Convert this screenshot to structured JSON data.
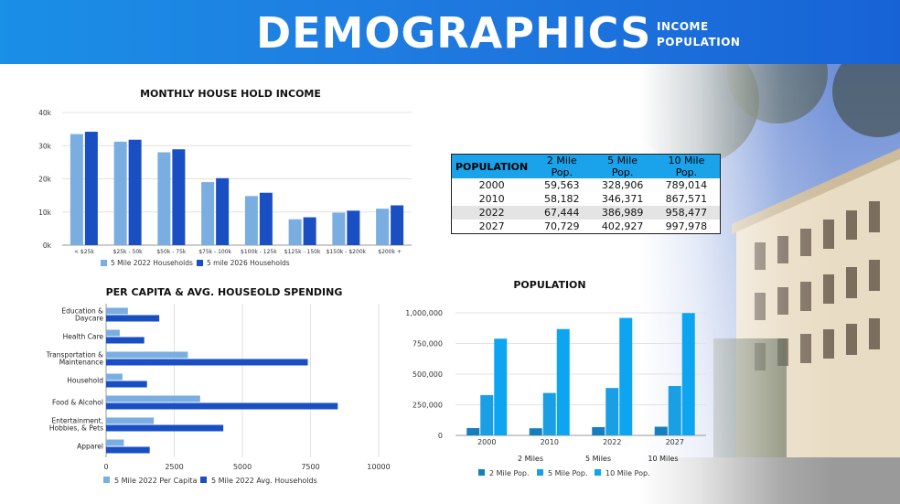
{
  "header": {
    "title": "DEMOGRAPHICS",
    "subtitle_1": "INCOME",
    "subtitle_2": "POPULATION"
  },
  "colors": {
    "header_bg": "#1f7be0",
    "light_blue": "#7aaee0",
    "dark_blue": "#1a4fc4",
    "pop_2mile": "#137fbf",
    "pop_5mile": "#1a9fe4",
    "pop_10mile": "#0ea5f0",
    "table_header": "#1aa3ea"
  },
  "chart_data": [
    {
      "id": "income",
      "type": "bar",
      "title": "MONTHLY HOUSE HOLD INCOME",
      "categories": [
        "< $25k",
        "$25k - 50k",
        "$50k - 75k",
        "$75k - 100k",
        "$100k - 125k",
        "$125k - 150k",
        "$150k - $200k",
        "$200k +"
      ],
      "series": [
        {
          "name": "5 Mile 2022 Households",
          "values": [
            33500,
            31200,
            28000,
            19000,
            14800,
            7800,
            9800,
            11000
          ]
        },
        {
          "name": "5 mile 2026 Households",
          "values": [
            34200,
            31800,
            28900,
            20200,
            15800,
            8400,
            10400,
            12000
          ]
        }
      ],
      "ylim": [
        0,
        40000
      ],
      "yticks": [
        "0k",
        "10k",
        "20k",
        "30k",
        "40k"
      ],
      "grid": true,
      "legend": "bottom"
    },
    {
      "id": "spending",
      "type": "bar",
      "orientation": "horizontal",
      "title": "PER CAPITA & AVG. HOUSEOLD SPENDING",
      "categories": [
        [
          "Education &",
          "Daycare"
        ],
        [
          "Health Care"
        ],
        [
          "Transportation &",
          "Maintenance"
        ],
        [
          "Household"
        ],
        [
          "Food & Alcohol"
        ],
        [
          "Entertainment,",
          "Hobbies, & Pets"
        ],
        [
          "Apparel"
        ]
      ],
      "series": [
        {
          "name": "5 Mile 2022 Per Capita",
          "values": [
            800,
            500,
            3000,
            600,
            3450,
            1750,
            650
          ]
        },
        {
          "name": "5 Mile 2022 Avg. Households",
          "values": [
            1950,
            1400,
            7400,
            1500,
            8500,
            4300,
            1600
          ]
        }
      ],
      "xlim": [
        0,
        10000
      ],
      "xticks": [
        "0",
        "2500",
        "5000",
        "7500",
        "10000"
      ],
      "grid": true,
      "legend": "bottom"
    },
    {
      "id": "population",
      "type": "bar",
      "title": "POPULATION",
      "categories": [
        "2000",
        "2010",
        "2022",
        "2027"
      ],
      "series": [
        {
          "name": "2 Mile Pop.",
          "values": [
            59563,
            58182,
            67444,
            70729
          ]
        },
        {
          "name": "5 Mile Pop.",
          "values": [
            328906,
            346371,
            386989,
            402927
          ]
        },
        {
          "name": "10 Mile Pop.",
          "values": [
            789014,
            867571,
            958477,
            997978
          ]
        }
      ],
      "ylim": [
        0,
        1000000
      ],
      "yticks": [
        "0",
        "250,000",
        "500,000",
        "750,000",
        "1,000,000"
      ],
      "group_labels": [
        "2 Miles",
        "5 Miles",
        "10 Miles"
      ],
      "grid": true,
      "legend": "bottom"
    }
  ],
  "population_table": {
    "headers": [
      "POPULATION",
      "2 Mile Pop.",
      "5 Mile Pop.",
      "10 Mile Pop."
    ],
    "rows": [
      [
        "2000",
        "59,563",
        "328,906",
        "789,014"
      ],
      [
        "2010",
        "58,182",
        "346,371",
        "867,571"
      ],
      [
        "2022",
        "67,444",
        "386,989",
        "958,477"
      ],
      [
        "2027",
        "70,729",
        "402,927",
        "997,978"
      ]
    ]
  }
}
